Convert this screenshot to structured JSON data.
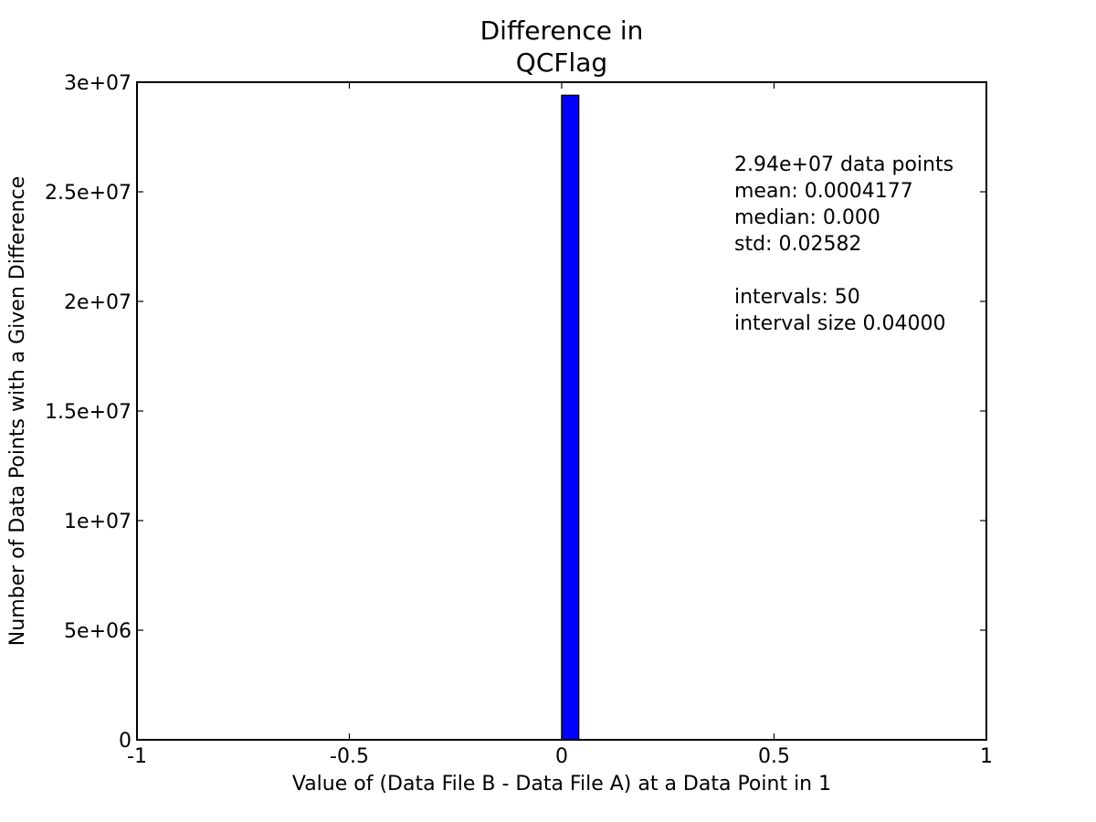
{
  "chart_data": {
    "type": "bar",
    "title_lines": [
      "Difference in",
      "QCFlag"
    ],
    "xlabel": "Value of (Data File B - Data File A) at a Data Point in 1",
    "ylabel": "Number of Data Points with a Given Difference",
    "xlim": [
      -1,
      1
    ],
    "ylim": [
      0,
      30000000
    ],
    "x_ticks": [
      {
        "value": -1,
        "label": "-1"
      },
      {
        "value": -0.5,
        "label": "-0.5"
      },
      {
        "value": 0,
        "label": "0"
      },
      {
        "value": 0.5,
        "label": "0.5"
      },
      {
        "value": 1,
        "label": "1"
      }
    ],
    "y_ticks": [
      {
        "value": 0,
        "label": "0"
      },
      {
        "value": 5000000,
        "label": "5e+06"
      },
      {
        "value": 10000000,
        "label": "1e+07"
      },
      {
        "value": 15000000,
        "label": "1.5e+07"
      },
      {
        "value": 20000000,
        "label": "2e+07"
      },
      {
        "value": 25000000,
        "label": "2.5e+07"
      },
      {
        "value": 30000000,
        "label": "3e+07"
      }
    ],
    "bins": [
      {
        "x_start": 0.0,
        "x_end": 0.04,
        "count": 29400000
      }
    ],
    "bar_color": "#0000ff",
    "grid": false,
    "stats_lines": [
      "2.94e+07 data points",
      "mean: 0.0004177",
      "median: 0.000",
      "std: 0.02582",
      "",
      "intervals: 50",
      "interval size 0.04000"
    ]
  }
}
